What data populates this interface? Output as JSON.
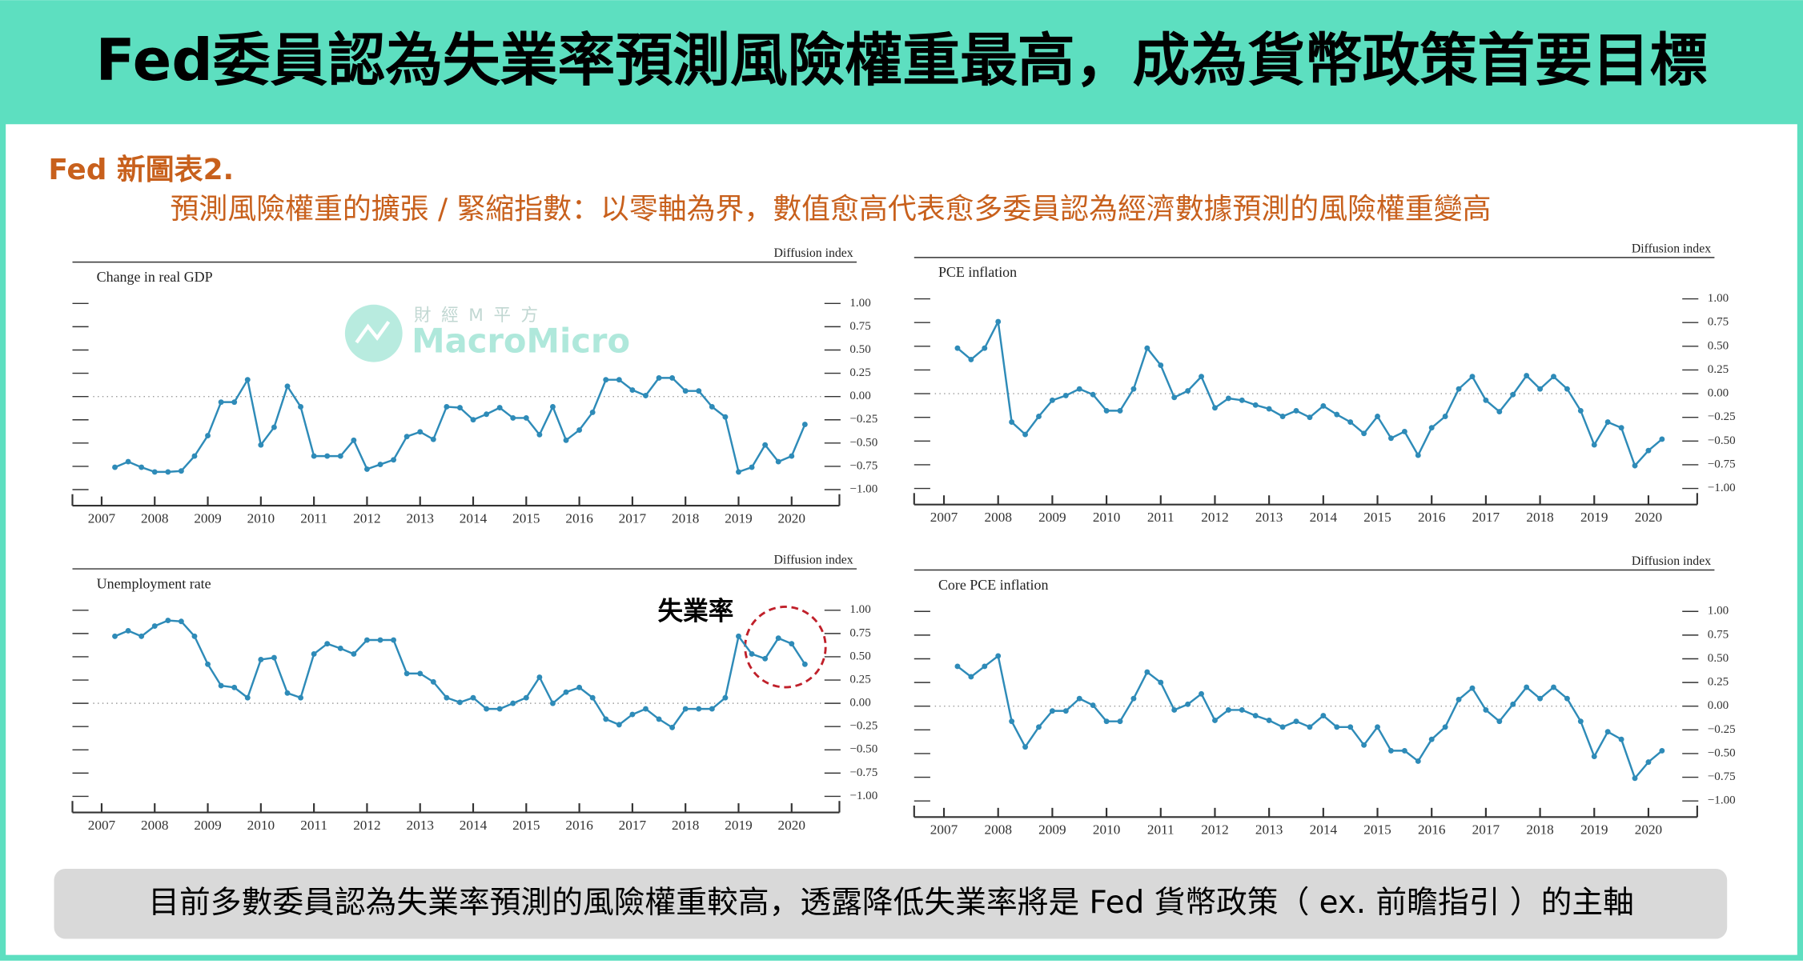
{
  "header": {
    "title": "Fed委員認為失業率預測風險權重最高，成為貨幣政策首要目標"
  },
  "subtitle": "Fed 新圖表2.",
  "description": "預測風險權重的擴張 / 緊縮指數：以零軸為界，數值愈高代表愈多委員認為經濟數據預測的風險權重變高",
  "watermark": {
    "cn": "財 經 M 平 方",
    "en": "MacroMicro"
  },
  "footer": "目前多數委員認為失業率預測的風險權重較高，透露降低失業率將是 Fed 貨幣政策（ ex. 前瞻指引 ）的主軸",
  "chart_data": [
    {
      "type": "line",
      "title": "Change in real GDP",
      "ylabel": "Diffusion index",
      "color": "#2e8bb8",
      "x": [
        2007.25,
        2007.5,
        2007.75,
        2008,
        2008.25,
        2008.5,
        2008.75,
        2009,
        2009.25,
        2009.5,
        2009.75,
        2010,
        2010.25,
        2010.5,
        2010.75,
        2011,
        2011.25,
        2011.5,
        2011.75,
        2012,
        2012.25,
        2012.5,
        2012.75,
        2013,
        2013.25,
        2013.5,
        2013.75,
        2014,
        2014.25,
        2014.5,
        2014.75,
        2015,
        2015.25,
        2015.5,
        2015.75,
        2016,
        2016.25,
        2016.5,
        2016.75,
        2017,
        2017.25,
        2017.5,
        2017.75,
        2018,
        2018.25,
        2018.5,
        2018.75,
        2019,
        2019.25,
        2019.5,
        2019.75,
        2020,
        2020.25
      ],
      "values": [
        -0.76,
        -0.7,
        -0.76,
        -0.81,
        -0.81,
        -0.8,
        -0.64,
        -0.42,
        -0.06,
        -0.06,
        0.18,
        -0.52,
        -0.33,
        0.11,
        -0.11,
        -0.64,
        -0.64,
        -0.64,
        -0.47,
        -0.78,
        -0.73,
        -0.68,
        -0.43,
        -0.38,
        -0.46,
        -0.11,
        -0.12,
        -0.25,
        -0.19,
        -0.12,
        -0.23,
        -0.23,
        -0.41,
        -0.11,
        -0.47,
        -0.36,
        -0.17,
        0.18,
        0.18,
        0.07,
        0.01,
        0.2,
        0.2,
        0.06,
        0.06,
        -0.11,
        -0.22,
        -0.81,
        -0.76,
        -0.52,
        -0.7,
        -0.64,
        -0.3
      ],
      "xlim": [
        2006.45,
        2020.9
      ],
      "xticks": [
        2007,
        2008,
        2009,
        2010,
        2011,
        2012,
        2013,
        2014,
        2015,
        2016,
        2017,
        2018,
        2019,
        2020
      ],
      "ylim": [
        -1,
        1
      ],
      "yticks": [
        {
          "value": 1,
          "label": "1.00"
        },
        {
          "value": 0.75,
          "label": "0.75"
        },
        {
          "value": 0.5,
          "label": "0.50"
        },
        {
          "value": 0.25,
          "label": "0.25"
        },
        {
          "value": 0,
          "label": "0.00"
        },
        {
          "value": -0.25,
          "label": "−0.25"
        },
        {
          "value": -0.5,
          "label": "−0.50"
        },
        {
          "value": -0.75,
          "label": "−0.75"
        },
        {
          "value": -1,
          "label": "−1.00"
        }
      ]
    },
    {
      "type": "line",
      "title": "PCE inflation",
      "ylabel": "Diffusion index",
      "color": "#2e8bb8",
      "x": [
        2007.25,
        2007.5,
        2007.75,
        2008,
        2008.25,
        2008.5,
        2008.75,
        2009,
        2009.25,
        2009.5,
        2009.75,
        2010,
        2010.25,
        2010.5,
        2010.75,
        2011,
        2011.25,
        2011.5,
        2011.75,
        2012,
        2012.25,
        2012.5,
        2012.75,
        2013,
        2013.25,
        2013.5,
        2013.75,
        2014,
        2014.25,
        2014.5,
        2014.75,
        2015,
        2015.25,
        2015.5,
        2015.75,
        2016,
        2016.25,
        2016.5,
        2016.75,
        2017,
        2017.25,
        2017.5,
        2017.75,
        2018,
        2018.25,
        2018.5,
        2018.75,
        2019,
        2019.25,
        2019.5,
        2019.75,
        2020,
        2020.25
      ],
      "values": [
        0.48,
        0.36,
        0.48,
        0.76,
        -0.3,
        -0.43,
        -0.24,
        -0.07,
        -0.02,
        0.05,
        -0.01,
        -0.18,
        -0.18,
        0.05,
        0.48,
        0.3,
        -0.04,
        0.03,
        0.18,
        -0.15,
        -0.05,
        -0.07,
        -0.12,
        -0.16,
        -0.24,
        -0.18,
        -0.25,
        -0.13,
        -0.22,
        -0.3,
        -0.42,
        -0.24,
        -0.47,
        -0.4,
        -0.65,
        -0.36,
        -0.24,
        0.05,
        0.18,
        -0.07,
        -0.19,
        -0.01,
        0.19,
        0.05,
        0.18,
        0.05,
        -0.18,
        -0.54,
        -0.3,
        -0.36,
        -0.76,
        -0.6,
        -0.48
      ],
      "xlim": [
        2006.45,
        2020.9
      ],
      "xticks": [
        2007,
        2008,
        2009,
        2010,
        2011,
        2012,
        2013,
        2014,
        2015,
        2016,
        2017,
        2018,
        2019,
        2020
      ],
      "ylim": [
        -1,
        1
      ],
      "yticks": [
        {
          "value": 1,
          "label": "1.00"
        },
        {
          "value": 0.75,
          "label": "0.75"
        },
        {
          "value": 0.5,
          "label": "0.50"
        },
        {
          "value": 0.25,
          "label": "0.25"
        },
        {
          "value": 0,
          "label": "0.00"
        },
        {
          "value": -0.25,
          "label": "−0.25"
        },
        {
          "value": -0.5,
          "label": "−0.50"
        },
        {
          "value": -0.75,
          "label": "−0.75"
        },
        {
          "value": -1,
          "label": "−1.00"
        }
      ]
    },
    {
      "type": "line",
      "title": "Unemployment rate",
      "ylabel": "Diffusion index",
      "color": "#2e8bb8",
      "annotation": "失業率",
      "x": [
        2007.25,
        2007.5,
        2007.75,
        2008,
        2008.25,
        2008.5,
        2008.75,
        2009,
        2009.25,
        2009.5,
        2009.75,
        2010,
        2010.25,
        2010.5,
        2010.75,
        2011,
        2011.25,
        2011.5,
        2011.75,
        2012,
        2012.25,
        2012.5,
        2012.75,
        2013,
        2013.25,
        2013.5,
        2013.75,
        2014,
        2014.25,
        2014.5,
        2014.75,
        2015,
        2015.25,
        2015.5,
        2015.75,
        2016,
        2016.25,
        2016.5,
        2016.75,
        2017,
        2017.25,
        2017.5,
        2017.75,
        2018,
        2018.25,
        2018.5,
        2018.75,
        2019,
        2019.25,
        2019.5,
        2019.75,
        2020,
        2020.25
      ],
      "values": [
        0.72,
        0.78,
        0.72,
        0.83,
        0.89,
        0.88,
        0.72,
        0.42,
        0.19,
        0.17,
        0.06,
        0.47,
        0.49,
        0.11,
        0.06,
        0.53,
        0.64,
        0.59,
        0.53,
        0.68,
        0.68,
        0.68,
        0.32,
        0.32,
        0.23,
        0.06,
        0.01,
        0.06,
        -0.06,
        -0.06,
        0.0,
        0.06,
        0.28,
        0.0,
        0.12,
        0.17,
        0.06,
        -0.17,
        -0.23,
        -0.12,
        -0.06,
        -0.17,
        -0.26,
        -0.06,
        -0.06,
        -0.06,
        0.06,
        0.72,
        0.53,
        0.48,
        0.7,
        0.64,
        0.42
      ],
      "xlim": [
        2006.45,
        2020.9
      ],
      "xticks": [
        2007,
        2008,
        2009,
        2010,
        2011,
        2012,
        2013,
        2014,
        2015,
        2016,
        2017,
        2018,
        2019,
        2020
      ],
      "ylim": [
        -1,
        1
      ],
      "yticks": [
        {
          "value": 1,
          "label": "1.00"
        },
        {
          "value": 0.75,
          "label": "0.75"
        },
        {
          "value": 0.5,
          "label": "0.50"
        },
        {
          "value": 0.25,
          "label": "0.25"
        },
        {
          "value": 0,
          "label": "0.00"
        },
        {
          "value": -0.25,
          "label": "−0.25"
        },
        {
          "value": -0.5,
          "label": "−0.50"
        },
        {
          "value": -0.75,
          "label": "−0.75"
        },
        {
          "value": -1,
          "label": "−1.00"
        }
      ]
    },
    {
      "type": "line",
      "title": "Core PCE inflation",
      "ylabel": "Diffusion index",
      "color": "#2e8bb8",
      "x": [
        2007.25,
        2007.5,
        2007.75,
        2008,
        2008.25,
        2008.5,
        2008.75,
        2009,
        2009.25,
        2009.5,
        2009.75,
        2010,
        2010.25,
        2010.5,
        2010.75,
        2011,
        2011.25,
        2011.5,
        2011.75,
        2012,
        2012.25,
        2012.5,
        2012.75,
        2013,
        2013.25,
        2013.5,
        2013.75,
        2014,
        2014.25,
        2014.5,
        2014.75,
        2015,
        2015.25,
        2015.5,
        2015.75,
        2016,
        2016.25,
        2016.5,
        2016.75,
        2017,
        2017.25,
        2017.5,
        2017.75,
        2018,
        2018.25,
        2018.5,
        2018.75,
        2019,
        2019.25,
        2019.5,
        2019.75,
        2020,
        2020.25
      ],
      "values": [
        0.42,
        0.31,
        0.42,
        0.53,
        -0.16,
        -0.43,
        -0.22,
        -0.05,
        -0.05,
        0.08,
        0.01,
        -0.16,
        -0.16,
        0.08,
        0.36,
        0.25,
        -0.04,
        0.02,
        0.13,
        -0.15,
        -0.04,
        -0.04,
        -0.1,
        -0.15,
        -0.22,
        -0.16,
        -0.22,
        -0.1,
        -0.22,
        -0.22,
        -0.41,
        -0.22,
        -0.47,
        -0.47,
        -0.58,
        -0.35,
        -0.22,
        0.07,
        0.19,
        -0.04,
        -0.16,
        0.02,
        0.2,
        0.08,
        0.2,
        0.08,
        -0.16,
        -0.53,
        -0.27,
        -0.35,
        -0.76,
        -0.59,
        -0.47
      ],
      "xlim": [
        2006.45,
        2020.9
      ],
      "xticks": [
        2007,
        2008,
        2009,
        2010,
        2011,
        2012,
        2013,
        2014,
        2015,
        2016,
        2017,
        2018,
        2019,
        2020
      ],
      "ylim": [
        -1,
        1
      ],
      "yticks": [
        {
          "value": 1,
          "label": "1.00"
        },
        {
          "value": 0.75,
          "label": "0.75"
        },
        {
          "value": 0.5,
          "label": "0.50"
        },
        {
          "value": 0.25,
          "label": "0.25"
        },
        {
          "value": 0,
          "label": "0.00"
        },
        {
          "value": -0.25,
          "label": "−0.25"
        },
        {
          "value": -0.5,
          "label": "−0.50"
        },
        {
          "value": -0.75,
          "label": "−0.75"
        },
        {
          "value": -1,
          "label": "−1.00"
        }
      ]
    }
  ]
}
